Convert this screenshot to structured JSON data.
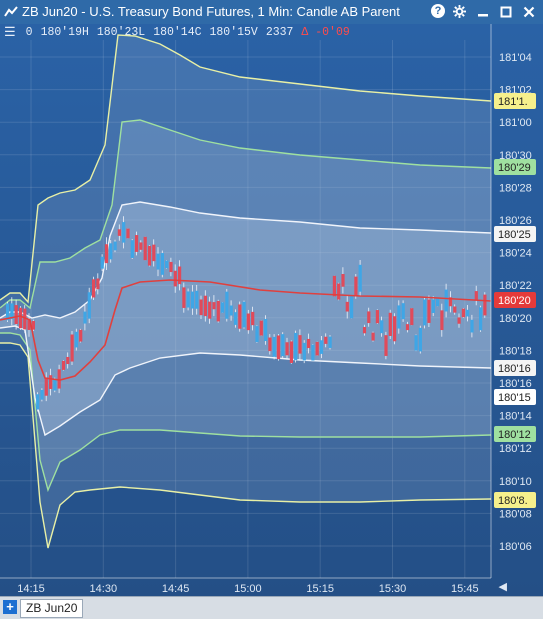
{
  "window": {
    "title": "ZB Jun20 - U.S. Treasury Bond Futures, 1 Min: Candle AB Parent",
    "buttons": {
      "help": "?",
      "settings": "gear-icon",
      "minimize": "minimize-icon",
      "close": "close-icon"
    }
  },
  "infobar": {
    "menu_icon": "hamburger-icon",
    "open_label": "0",
    "open": "180'19H",
    "low": "180'23L",
    "close": "180'14C",
    "last": "180'15V",
    "volume": "2337",
    "delta_symbol": "Δ",
    "change": "-0'09"
  },
  "tabs": {
    "add_label": "+",
    "active": "ZB Jun20"
  },
  "colors": {
    "background": "#2a5a94",
    "band_outer": "#e8f0a6",
    "band_mid": "#9fe0a0",
    "band_inner": "#f0f4fb",
    "vwap": "#e0403e",
    "candle_up": "#3fa6e6",
    "candle_down": "#e04a5a"
  },
  "chart_data": {
    "type": "candlestick",
    "x_ticks": [
      "14:15",
      "14:30",
      "14:45",
      "15:00",
      "15:15",
      "15:30",
      "15:45"
    ],
    "y_ticks": [
      "181'04",
      "181'02",
      "181'00",
      "180'30",
      "180'28",
      "180'26",
      "180'24",
      "180'22",
      "180'20",
      "180'18",
      "180'16",
      "180'14",
      "180'12",
      "180'10",
      "180'08",
      "180'06"
    ],
    "price_tags": [
      {
        "label": "181'1.",
        "color": "#f6f08c",
        "text_color": "#222"
      },
      {
        "label": "180'29",
        "color": "#9fe0a0",
        "text_color": "#222"
      },
      {
        "label": "180'25",
        "color": "#f4f4f4",
        "text_color": "#222"
      },
      {
        "label": "180'20",
        "color": "#e53a3a",
        "text_color": "#fff"
      },
      {
        "label": "180'16",
        "color": "#f4f4f4",
        "text_color": "#222"
      },
      {
        "label": "180'15",
        "color": "#ffffff",
        "text_color": "#222"
      },
      {
        "label": "180'12",
        "color": "#9fe0a0",
        "text_color": "#222"
      },
      {
        "label": "180'8.",
        "color": "#f6f08c",
        "text_color": "#222"
      }
    ]
  }
}
